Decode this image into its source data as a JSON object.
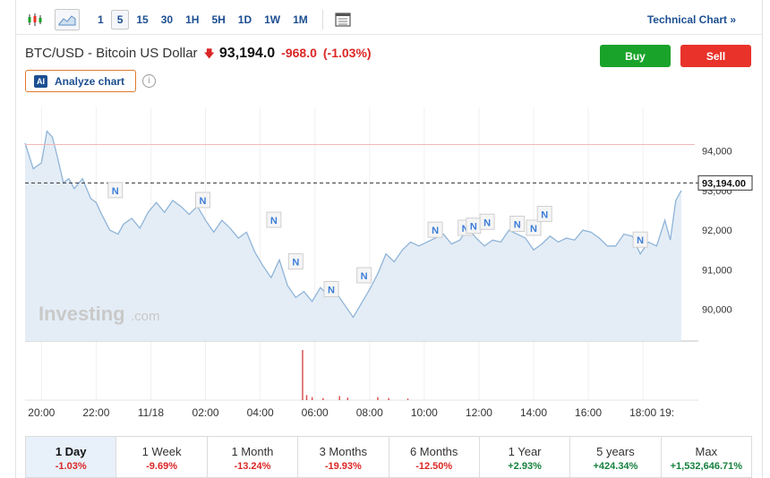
{
  "toolbar": {
    "intervals": [
      "1",
      "5",
      "15",
      "30",
      "1H",
      "5H",
      "1D",
      "1W",
      "1M"
    ],
    "active_interval": "5",
    "technical_chart_label": "Technical Chart »"
  },
  "instrument": {
    "name": "BTC/USD - Bitcoin US Dollar",
    "price": "93,194.0",
    "change": "-968.0",
    "change_pct": "(-1.03%)",
    "direction": "down"
  },
  "actions": {
    "buy_label": "Buy",
    "sell_label": "Sell",
    "analyze_label": "Analyze chart",
    "ai_badge": "AI"
  },
  "watermark": {
    "brand": "Investing",
    "suffix": ".com"
  },
  "colors": {
    "line": "#8fb4d8",
    "area": "#e4edf6",
    "ref_line": "#f2b8b8",
    "down": "#dc2626",
    "up": "#15803d",
    "buy": "#1aa32a",
    "sell": "#e8322a",
    "accent": "#1d4f91"
  },
  "chart_data": {
    "type": "area",
    "y_ticks": [
      "94,000",
      "93,000",
      "92,000",
      "91,000",
      "90,000"
    ],
    "y_tick_values": [
      94000,
      93000,
      92000,
      91000,
      90000
    ],
    "x_ticks": [
      "20:00",
      "22:00",
      "11/18",
      "02:00",
      "04:00",
      "06:00",
      "08:00",
      "10:00",
      "12:00",
      "14:00",
      "16:00",
      "18:00",
      "19:"
    ],
    "x_tick_hours": [
      0,
      2,
      4,
      6,
      8,
      10,
      12,
      14,
      16,
      18,
      20,
      22,
      23
    ],
    "last_price_label": "93,194.00",
    "last_price": 93194,
    "reference_price": 94162,
    "ylim": [
      89200,
      95100
    ],
    "x_range": [
      -0.6,
      23.6
    ],
    "series": [
      {
        "x": [
          -0.6,
          -0.3,
          0,
          0.2,
          0.4,
          0.6,
          0.8,
          1.0,
          1.2,
          1.5,
          1.8,
          2.0,
          2.2,
          2.5,
          2.8,
          3.0,
          3.3,
          3.6,
          3.9,
          4.2,
          4.5,
          4.8,
          5.1,
          5.4,
          5.7,
          6.0,
          6.3,
          6.6,
          6.9,
          7.2,
          7.5,
          7.8,
          8.1,
          8.4,
          8.7,
          9.0,
          9.3,
          9.6,
          9.9,
          10.2,
          10.5,
          10.8,
          11.1,
          11.4,
          11.7,
          12.0,
          12.3,
          12.6,
          12.9,
          13.2,
          13.5,
          13.8,
          14.1,
          14.4,
          14.7,
          15.0,
          15.3,
          15.6,
          15.9,
          16.2,
          16.5,
          16.8,
          17.1,
          17.4,
          17.7,
          18.0,
          18.3,
          18.6,
          18.9,
          19.2,
          19.5,
          19.8,
          20.1,
          20.4,
          20.7,
          21.0,
          21.3,
          21.6,
          21.9,
          22.2,
          22.5,
          22.8,
          23.0,
          23.2,
          23.4
        ],
        "values": [
          94200,
          93550,
          93700,
          94500,
          94350,
          93800,
          93200,
          93300,
          93050,
          93300,
          92800,
          92700,
          92400,
          92000,
          91900,
          92150,
          92300,
          92050,
          92450,
          92700,
          92450,
          92750,
          92600,
          92400,
          92600,
          92250,
          91950,
          92250,
          92050,
          91800,
          91950,
          91450,
          91100,
          90800,
          91250,
          90600,
          90300,
          90450,
          90200,
          90550,
          90350,
          90400,
          90100,
          89800,
          90150,
          90500,
          90900,
          91400,
          91200,
          91500,
          91700,
          91600,
          91700,
          91800,
          91900,
          91650,
          91750,
          92050,
          91800,
          91600,
          91750,
          91700,
          92000,
          91900,
          91800,
          91500,
          91650,
          91850,
          91700,
          91800,
          91750,
          92000,
          91950,
          91800,
          91600,
          91600,
          91900,
          91850,
          91400,
          91700,
          91600,
          92250,
          91750,
          92750,
          93000
        ]
      }
    ],
    "volume": [
      {
        "x": 9.55,
        "v": 1.0
      },
      {
        "x": 9.7,
        "v": 0.1
      },
      {
        "x": 9.9,
        "v": 0.06
      },
      {
        "x": 10.3,
        "v": 0.04
      },
      {
        "x": 10.9,
        "v": 0.08
      },
      {
        "x": 11.2,
        "v": 0.05
      },
      {
        "x": 12.3,
        "v": 0.06
      },
      {
        "x": 12.7,
        "v": 0.04
      },
      {
        "x": 13.4,
        "v": 0.03
      }
    ],
    "news_markers": [
      {
        "x": 2.7,
        "v": 93000
      },
      {
        "x": 5.9,
        "v": 92750
      },
      {
        "x": 8.5,
        "v": 92250
      },
      {
        "x": 9.3,
        "v": 91200
      },
      {
        "x": 10.6,
        "v": 90500
      },
      {
        "x": 11.8,
        "v": 90850
      },
      {
        "x": 14.4,
        "v": 92000
      },
      {
        "x": 15.5,
        "v": 92050
      },
      {
        "x": 15.8,
        "v": 92100
      },
      {
        "x": 16.3,
        "v": 92200
      },
      {
        "x": 17.4,
        "v": 92150
      },
      {
        "x": 18.0,
        "v": 92050
      },
      {
        "x": 18.4,
        "v": 92400
      },
      {
        "x": 21.9,
        "v": 91750
      }
    ],
    "news_label": "N"
  },
  "periods": [
    {
      "label": "1 Day",
      "change": "-1.03%",
      "dir": "neg",
      "active": true
    },
    {
      "label": "1 Week",
      "change": "-9.69%",
      "dir": "neg"
    },
    {
      "label": "1 Month",
      "change": "-13.24%",
      "dir": "neg"
    },
    {
      "label": "3 Months",
      "change": "-19.93%",
      "dir": "neg"
    },
    {
      "label": "6 Months",
      "change": "-12.50%",
      "dir": "neg"
    },
    {
      "label": "1 Year",
      "change": "+2.93%",
      "dir": "pos"
    },
    {
      "label": "5 years",
      "change": "+424.34%",
      "dir": "pos"
    },
    {
      "label": "Max",
      "change": "+1,532,646.71%",
      "dir": "pos"
    }
  ]
}
